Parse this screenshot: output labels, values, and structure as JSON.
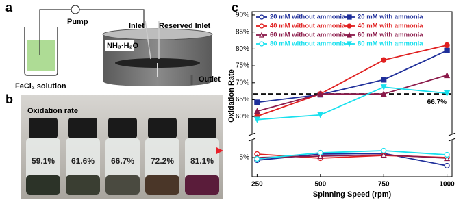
{
  "panel_a": {
    "label": "a",
    "pump": "Pump",
    "solution": "FeCl₂ solution",
    "inlet": "Inlet",
    "reserved_inlet": "Reserved Inlet",
    "reagent": "NH₃·H₂O",
    "outlet": "Outlet"
  },
  "panel_b": {
    "label": "b",
    "title": "Oxidation rate",
    "vials": [
      "59.1%",
      "61.6%",
      "66.7%",
      "72.2%",
      "81.1%"
    ]
  },
  "chart_data": {
    "type": "line",
    "panel_label": "c",
    "x_label": "Spinning Speed (rpm)",
    "y_label": "Oxidation Rate",
    "x": [
      250,
      500,
      750,
      1000
    ],
    "xlim": [
      230,
      1020
    ],
    "xticks": [
      250,
      500,
      750,
      1000
    ],
    "ylim": [
      3,
      91
    ],
    "ybreak": [
      7,
      56
    ],
    "yticks": [
      {
        "value": 5,
        "label": "5%"
      },
      {
        "value": 60,
        "label": "60%"
      },
      {
        "value": 65,
        "label": "65%"
      },
      {
        "value": 70,
        "label": "70%"
      },
      {
        "value": 75,
        "label": "75%"
      },
      {
        "value": 80,
        "label": "80%"
      },
      {
        "value": 85,
        "label": "85%"
      },
      {
        "value": 90,
        "label": "90%"
      }
    ],
    "reference_line": {
      "value": 66.7,
      "label": "66.7%"
    },
    "series": [
      {
        "name": "20 mM without ammonia",
        "color": "#1f2f9a",
        "marker": "circle",
        "filled": false,
        "values": [
          4.6,
          5.5,
          5.6,
          3.8
        ]
      },
      {
        "name": "20 mM with ammonia",
        "color": "#1f2f9a",
        "marker": "square",
        "filled": true,
        "values": [
          64.2,
          66.5,
          70.9,
          79.5
        ]
      },
      {
        "name": "40 mM without ammonia",
        "color": "#e02020",
        "marker": "circle",
        "filled": false,
        "values": [
          5.5,
          4.9,
          5.3,
          5.0
        ]
      },
      {
        "name": "40 mM with ammonia",
        "color": "#e02020",
        "marker": "circle",
        "filled": true,
        "values": [
          60.1,
          66.7,
          76.7,
          81.1
        ]
      },
      {
        "name": "60 mM without ammonia",
        "color": "#8b1a4a",
        "marker": "triangle",
        "filled": false,
        "values": [
          5.0,
          5.2,
          5.4,
          4.9
        ]
      },
      {
        "name": "60 mM with ammonia",
        "color": "#8b1a4a",
        "marker": "triangle",
        "filled": true,
        "values": [
          61.6,
          66.7,
          66.7,
          72.2
        ]
      },
      {
        "name": "80 mM without ammonia",
        "color": "#19e0ee",
        "marker": "circle",
        "filled": false,
        "values": [
          4.8,
          5.7,
          6.0,
          5.4
        ]
      },
      {
        "name": "80 mM with ammonia",
        "color": "#19e0ee",
        "marker": "triangle-down",
        "filled": true,
        "values": [
          59.1,
          60.5,
          68.7,
          66.9
        ]
      }
    ]
  }
}
